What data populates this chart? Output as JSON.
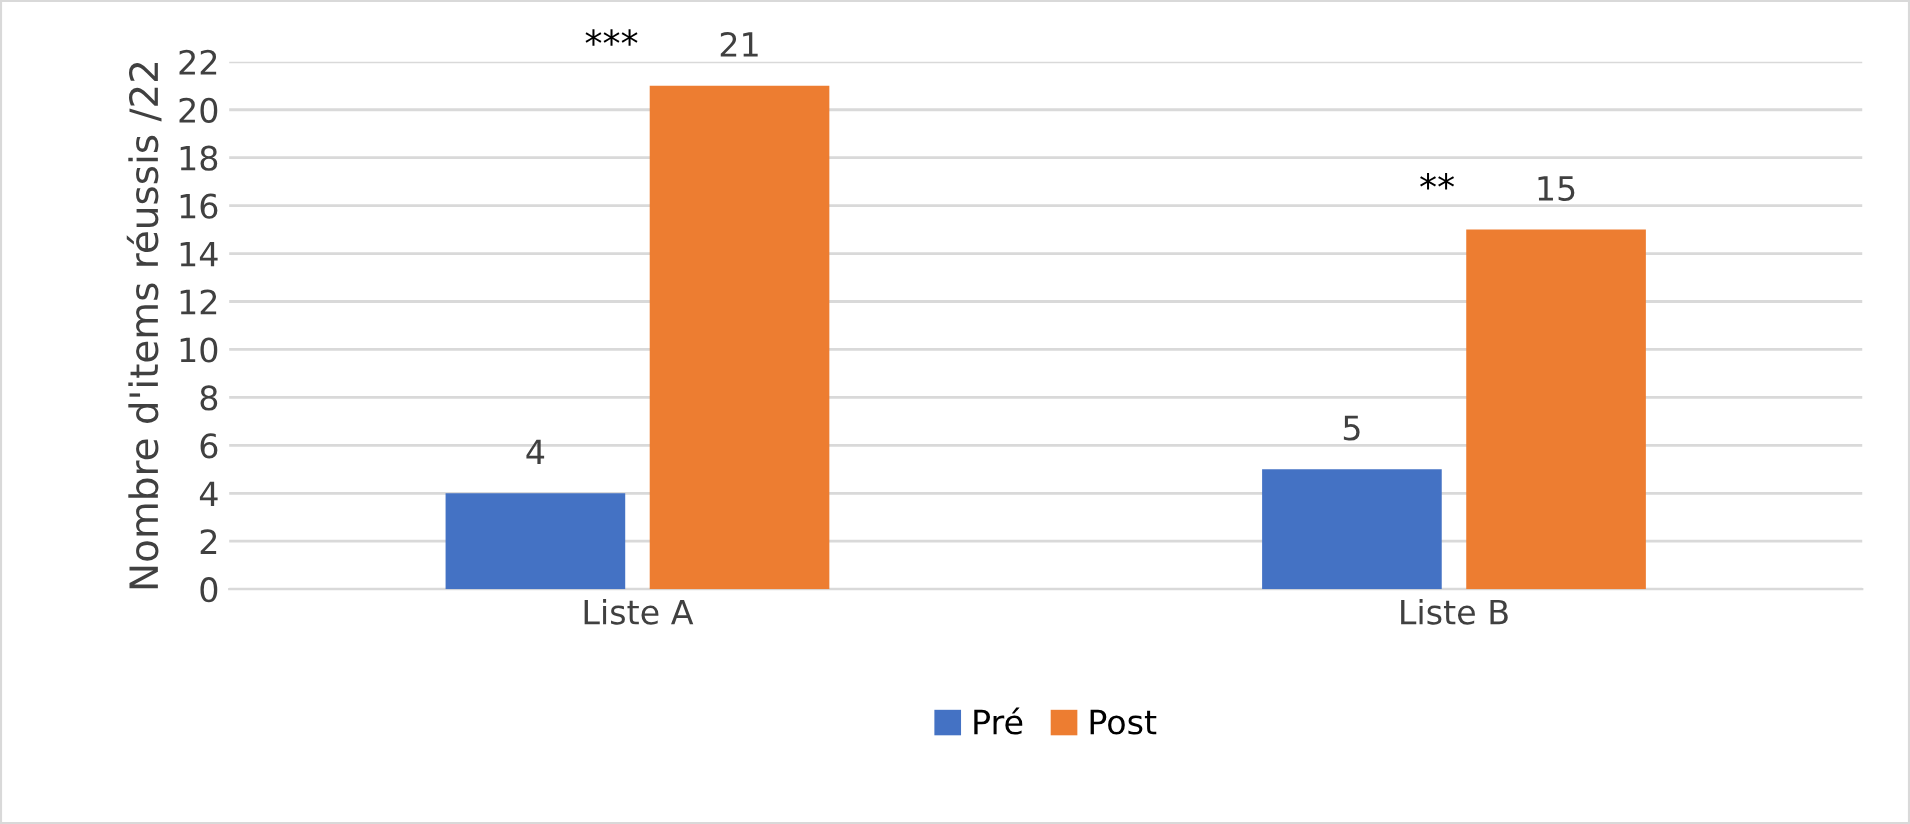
{
  "chart_data": {
    "type": "bar",
    "ylabel": "Nombre d'items réussis /22",
    "categories": [
      "Liste A",
      "Liste B"
    ],
    "series": [
      {
        "name": "Pré",
        "color": "#4472c4",
        "values": [
          4,
          5
        ]
      },
      {
        "name": "Post",
        "color": "#ed7d31",
        "values": [
          21,
          15
        ]
      }
    ],
    "ylim": [
      0,
      22
    ],
    "yticks": [
      0,
      2,
      4,
      6,
      8,
      10,
      12,
      14,
      16,
      18,
      20,
      22
    ],
    "grid": "y",
    "legend": "bottom",
    "data_labels": true,
    "annotations": [
      "***",
      "**"
    ]
  }
}
